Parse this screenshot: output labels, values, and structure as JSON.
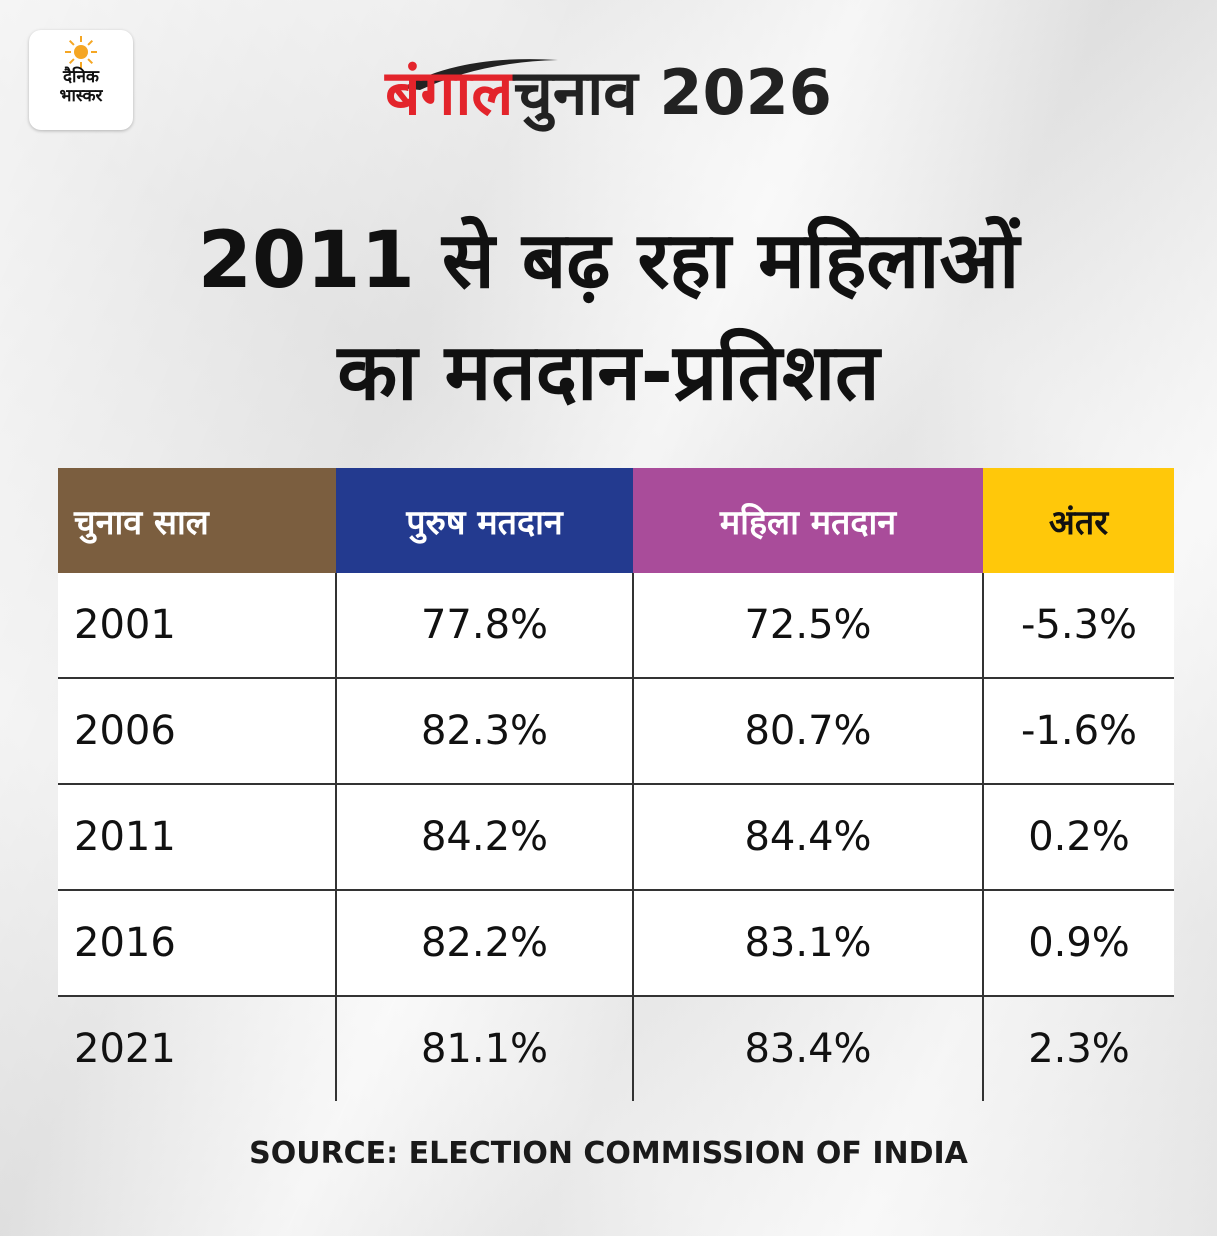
{
  "logo": {
    "line1": "दैनिक",
    "line2": "भास्कर",
    "accent": "#f5a623"
  },
  "masthead": {
    "highlight": "बंगाल",
    "rest": "चुनाव 2026"
  },
  "headline": {
    "line1": "2011 से बढ़ रहा महिलाओं",
    "line2": "का मतदान-प्रतिशत"
  },
  "colors": {
    "year": "#7b5e3f",
    "male": "#233a8f",
    "female": "#a94c9a",
    "diff": "#ffc80a",
    "brand_red": "#e3242b"
  },
  "chart_data": {
    "type": "table",
    "columns": [
      "चुनाव साल",
      "पुरुष मतदान",
      "महिला मतदान",
      "अंतर"
    ],
    "rows": [
      [
        "2001",
        "77.8%",
        "72.5%",
        "-5.3%"
      ],
      [
        "2006",
        "82.3%",
        "80.7%",
        "-1.6%"
      ],
      [
        "2011",
        "84.2%",
        "84.4%",
        "0.2%"
      ],
      [
        "2016",
        "82.2%",
        "83.1%",
        "0.9%"
      ],
      [
        "2021",
        "81.1%",
        "83.4%",
        "2.3%"
      ]
    ]
  },
  "source": "SOURCE: ELECTION COMMISSION OF INDIA"
}
